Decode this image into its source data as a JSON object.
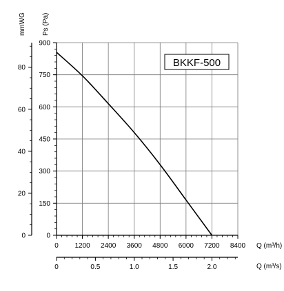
{
  "chart_data": {
    "type": "line",
    "model_label": "BKKF-500",
    "x_axis": {
      "label": "Q (m³/h)",
      "min": 0,
      "max": 8400,
      "ticks": [
        0,
        1200,
        2400,
        3600,
        4800,
        6000,
        7200,
        8400
      ]
    },
    "x2_axis": {
      "label": "Q (m³/s)",
      "min": 0,
      "max": 2.333,
      "ticks": [
        "0",
        "0.5",
        "1.0",
        "1.5",
        "2.0"
      ],
      "tick_values": [
        0,
        0.5,
        1.0,
        1.5,
        2.0
      ]
    },
    "y_axis": {
      "label": "Ps (Pa)",
      "min": 0,
      "max": 900,
      "ticks": [
        0,
        150,
        300,
        450,
        600,
        750,
        900
      ]
    },
    "y2_axis": {
      "label": "mmWG",
      "min": 0,
      "max": 91.7,
      "ticks": [
        0,
        20,
        40,
        60,
        80
      ]
    },
    "grid": true,
    "series": [
      {
        "x": [
          0,
          1200,
          2400,
          3600,
          4800,
          6000,
          7200
        ],
        "y": [
          855,
          745,
          615,
          480,
          330,
          165,
          0
        ]
      }
    ]
  }
}
